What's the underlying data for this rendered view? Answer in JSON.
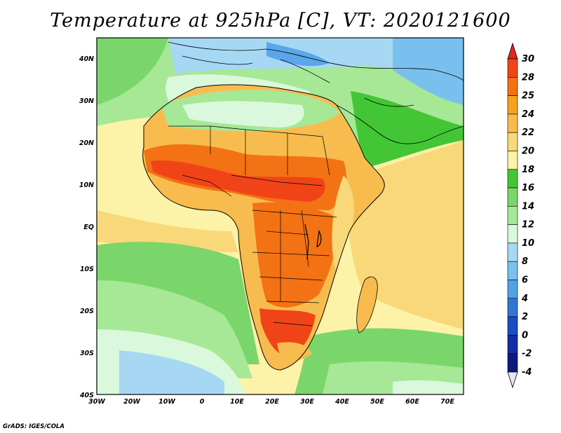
{
  "title": "Temperature at 925hPa [C], VT: 2020121600",
  "footer": "GrADS: IGES/COLA",
  "lat_labels": [
    "40N",
    "30N",
    "20N",
    "10N",
    "EQ",
    "10S",
    "20S",
    "30S",
    "40S"
  ],
  "lon_labels": [
    "30W",
    "20W",
    "10W",
    "0",
    "10E",
    "20E",
    "30E",
    "40E",
    "50E",
    "60E",
    "70E"
  ],
  "colorbar": {
    "labels": [
      "30",
      "28",
      "25",
      "24",
      "22",
      "20",
      "18",
      "16",
      "14",
      "12",
      "10",
      "8",
      "6",
      "4",
      "2",
      "0",
      "-2",
      "-4"
    ],
    "colors": [
      "#e8221c",
      "#f04418",
      "#f37214",
      "#f8a020",
      "#f8bc4e",
      "#f8d878",
      "#fcf2a8",
      "#42c636",
      "#7ad66a",
      "#a6e896",
      "#daf8dc",
      "#a6d8f4",
      "#7ac0ee",
      "#50a2e6",
      "#3076d6",
      "#1a4cc4",
      "#122ea6",
      "#0c1a7c",
      "#e6e6f8"
    ]
  },
  "map_colors": {
    "ocean_cold": "#5aa6e8",
    "ocean_cool": "#a6d8f4",
    "ocean_mild": "#daf8dc",
    "ocean_green": "#a6e896",
    "ocean_green2": "#7ad66a",
    "tropical_sea": "#fcf2a8",
    "warm_sea": "#f8d878",
    "land_warm": "#f8bc4e",
    "land_hot": "#f37214",
    "land_hotter": "#f04418",
    "land_hottest": "#e8221c"
  }
}
